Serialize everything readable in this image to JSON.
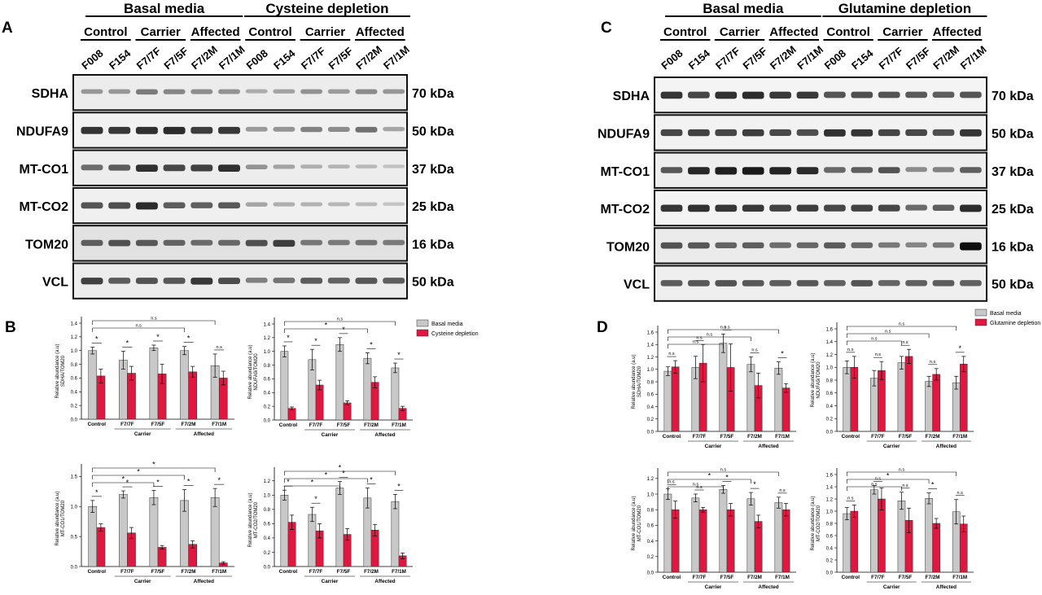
{
  "panels": {
    "A": {
      "letter": "A",
      "header_groups": [
        "Basal media",
        "Cysteine depletion"
      ],
      "subgroups": [
        "Control",
        "Carrier",
        "Affected",
        "Control",
        "Carrier",
        "Affected"
      ],
      "lanes": [
        "F008",
        "F154",
        "F7/7F",
        "F7/5F",
        "F7/2M",
        "F7/1M",
        "F008",
        "F154",
        "F7/7F",
        "F7/5F",
        "F7/2M",
        "F7/1M"
      ],
      "blots": [
        {
          "protein": "SDHA",
          "kda": "70 kDa",
          "bg": "#ececec",
          "band": [
            0.28,
            0.28,
            0.42,
            0.36,
            0.33,
            0.31,
            0.18,
            0.22,
            0.3,
            0.26,
            0.34,
            0.28
          ]
        },
        {
          "protein": "NDUFA9",
          "kda": "50 kDa",
          "bg": "#f1f1f1",
          "band": [
            0.78,
            0.76,
            0.8,
            0.82,
            0.74,
            0.76,
            0.28,
            0.3,
            0.4,
            0.35,
            0.48,
            0.22
          ]
        },
        {
          "protein": "MT-CO1",
          "kda": "37 kDa",
          "bg": "#ededed",
          "band": [
            0.5,
            0.58,
            0.8,
            0.68,
            0.72,
            0.8,
            0.3,
            0.22,
            0.16,
            0.14,
            0.12,
            0.07
          ]
        },
        {
          "protein": "MT-CO2",
          "kda": "25 kDa",
          "bg": "#f0f0f0",
          "band": [
            0.62,
            0.66,
            0.82,
            0.58,
            0.56,
            0.6,
            0.22,
            0.18,
            0.16,
            0.14,
            0.12,
            0.07
          ]
        },
        {
          "protein": "TOM20",
          "kda": "16 kDa",
          "bg": "#e2e2e2",
          "band": [
            0.55,
            0.62,
            0.58,
            0.52,
            0.48,
            0.5,
            0.62,
            0.72,
            0.42,
            0.4,
            0.44,
            0.4
          ]
        },
        {
          "protein": "VCL",
          "kda": "50 kDa",
          "bg": "#ececec",
          "band": [
            0.72,
            0.58,
            0.62,
            0.6,
            0.76,
            0.66,
            0.4,
            0.46,
            0.58,
            0.54,
            0.6,
            0.56
          ]
        }
      ]
    },
    "C": {
      "letter": "C",
      "header_groups": [
        "Basal media",
        "Glutamine depletion"
      ],
      "subgroups": [
        "Control",
        "Carrier",
        "Affected",
        "Control",
        "Carrier",
        "Affected"
      ],
      "lanes": [
        "F008",
        "F154",
        "F7/7F",
        "F7/5F",
        "F7/2M",
        "F7/1M",
        "F008",
        "F154",
        "F7/7F",
        "F7/5F",
        "F7/2M",
        "F7/1M"
      ],
      "blots": [
        {
          "protein": "SDHA",
          "kda": "70 kDa",
          "bg": "#f4f4f4",
          "band": [
            0.78,
            0.7,
            0.8,
            0.82,
            0.76,
            0.76,
            0.62,
            0.66,
            0.64,
            0.6,
            0.58,
            0.62
          ]
        },
        {
          "protein": "NDUFA9",
          "kda": "50 kDa",
          "bg": "#f2f2f2",
          "band": [
            0.7,
            0.72,
            0.7,
            0.74,
            0.68,
            0.66,
            0.8,
            0.78,
            0.7,
            0.68,
            0.66,
            0.78
          ]
        },
        {
          "protein": "MT-CO1",
          "kda": "37 kDa",
          "bg": "#eeeeee",
          "band": [
            0.6,
            0.84,
            0.88,
            0.9,
            0.86,
            0.82,
            0.52,
            0.56,
            0.62,
            0.34,
            0.4,
            0.56
          ]
        },
        {
          "protein": "MT-CO2",
          "kda": "25 kDa",
          "bg": "#f3f3f3",
          "band": [
            0.78,
            0.8,
            0.78,
            0.76,
            0.72,
            0.74,
            0.7,
            0.72,
            0.7,
            0.52,
            0.58,
            0.82
          ]
        },
        {
          "protein": "TOM20",
          "kda": "16 kDa",
          "bg": "#ebebeb",
          "band": [
            0.62,
            0.6,
            0.54,
            0.56,
            0.5,
            0.52,
            0.58,
            0.52,
            0.44,
            0.36,
            0.44,
            0.96
          ]
        },
        {
          "protein": "VCL",
          "kda": "50 kDa",
          "bg": "#efefef",
          "band": [
            0.58,
            0.6,
            0.62,
            0.6,
            0.58,
            0.6,
            0.56,
            0.62,
            0.54,
            0.56,
            0.58,
            0.56
          ]
        }
      ]
    },
    "B": {
      "letter": "B"
    },
    "D": {
      "letter": "D"
    }
  },
  "legends": {
    "B": {
      "series": [
        "Basal media",
        "Cysteine depletion"
      ]
    },
    "D": {
      "series": [
        "Basal media",
        "Glutamine depletion"
      ]
    }
  },
  "colors": {
    "basal": "#c8c8c8",
    "depleted": "#e0173f",
    "axis": "#000000"
  },
  "chart_data": [
    {
      "panel": "B",
      "type": "bar",
      "ylabel": [
        "Relative abundance (a.u)",
        "SDHA/TOM20"
      ],
      "categories": [
        "Control",
        "F7/7F",
        "F7/5F",
        "F7/2M",
        "F7/1M"
      ],
      "group_labels": [
        "Carrier",
        "Affected"
      ],
      "yticks": [
        "0.0",
        "0.2",
        "0.4",
        "0.6",
        "0.8",
        "1.0",
        "1.2",
        "1.4"
      ],
      "ylim": [
        0,
        1.4
      ],
      "series": [
        {
          "name": "Basal media",
          "values": [
            1.0,
            0.86,
            1.04,
            1.0,
            0.78
          ],
          "err": [
            0.05,
            0.13,
            0.04,
            0.06,
            0.17
          ]
        },
        {
          "name": "Cysteine depletion",
          "values": [
            0.63,
            0.67,
            0.66,
            0.69,
            0.6
          ],
          "err": [
            0.1,
            0.1,
            0.14,
            0.08,
            0.1
          ]
        }
      ],
      "pair_sig": [
        "*",
        "*",
        "*",
        "*",
        "n.s"
      ],
      "brackets": [
        {
          "to": 3,
          "label": "n.s"
        },
        {
          "to": 4,
          "label": "n.s"
        }
      ]
    },
    {
      "panel": "B",
      "type": "bar",
      "ylabel": [
        "Relative abundance (a.u)",
        "NDUFA9/TOM20"
      ],
      "categories": [
        "Control",
        "F7/7F",
        "F7/5F",
        "F7/2M",
        "F7/1M"
      ],
      "group_labels": [
        "Carrier",
        "Affected"
      ],
      "yticks": [
        "0.0",
        "0.2",
        "0.4",
        "0.6",
        "0.8",
        "1.0",
        "1.2",
        "1.4"
      ],
      "ylim": [
        0,
        1.4
      ],
      "series": [
        {
          "name": "Basal media",
          "values": [
            1.0,
            0.88,
            1.1,
            0.9,
            0.76
          ],
          "err": [
            0.08,
            0.15,
            0.1,
            0.08,
            0.07
          ]
        },
        {
          "name": "Cysteine depletion",
          "values": [
            0.17,
            0.51,
            0.25,
            0.55,
            0.17
          ],
          "err": [
            0.02,
            0.07,
            0.03,
            0.08,
            0.03
          ]
        }
      ],
      "pair_sig": [
        "*",
        "*",
        "*",
        "*",
        "*"
      ],
      "brackets": [
        {
          "to": 3,
          "label": "*"
        },
        {
          "to": 4,
          "label": "n.s"
        }
      ]
    },
    {
      "panel": "B",
      "type": "bar",
      "ylabel": [
        "Relative abundance (a.u)",
        "MT-CO1/TOM20"
      ],
      "categories": [
        "Control",
        "F7/7F",
        "F7/5F",
        "F7/2M",
        "F7/1M"
      ],
      "group_labels": [
        "Carrier",
        "Affected"
      ],
      "yticks": [
        "0.0",
        "0.5",
        "1.0",
        "1.5"
      ],
      "ylim": [
        0,
        1.6
      ],
      "series": [
        {
          "name": "Basal media",
          "values": [
            1.0,
            1.2,
            1.15,
            1.1,
            1.15
          ],
          "err": [
            0.1,
            0.06,
            0.12,
            0.18,
            0.15
          ]
        },
        {
          "name": "Cysteine depletion",
          "values": [
            0.65,
            0.56,
            0.32,
            0.37,
            0.06
          ],
          "err": [
            0.06,
            0.09,
            0.03,
            0.06,
            0.02
          ]
        }
      ],
      "pair_sig": [
        "*",
        "*",
        "*",
        "*",
        "*"
      ],
      "brackets": [
        {
          "to": 2,
          "label": "*"
        },
        {
          "to": 3,
          "label": "*"
        },
        {
          "to": 4,
          "label": "*"
        }
      ]
    },
    {
      "panel": "B",
      "type": "bar",
      "ylabel": [
        "Relative abundance (a.u)",
        "MT-CO2/TOM20"
      ],
      "categories": [
        "Control",
        "F7/7F",
        "F7/5F",
        "F7/2M",
        "F7/1M"
      ],
      "group_labels": [
        "Carrier",
        "Affected"
      ],
      "yticks": [
        "0.0",
        "0.2",
        "0.4",
        "0.6",
        "0.8",
        "1.0",
        "1.2"
      ],
      "ylim": [
        0,
        1.3
      ],
      "series": [
        {
          "name": "Basal media",
          "values": [
            1.0,
            0.73,
            1.1,
            0.96,
            0.91
          ],
          "err": [
            0.07,
            0.1,
            0.09,
            0.14,
            0.1
          ]
        },
        {
          "name": "Cysteine depletion",
          "values": [
            0.62,
            0.5,
            0.45,
            0.51,
            0.15
          ],
          "err": [
            0.1,
            0.1,
            0.08,
            0.08,
            0.04
          ]
        }
      ],
      "pair_sig": [
        "*",
        "*",
        "*",
        "*",
        "*"
      ],
      "brackets": [
        {
          "to": 2,
          "label": "*"
        },
        {
          "to": 3,
          "label": "*"
        },
        {
          "to": 4,
          "label": "*"
        }
      ]
    },
    {
      "panel": "D",
      "type": "bar",
      "ylabel": [
        "Relative abundance (a.u)",
        "SDHA/TOM20"
      ],
      "categories": [
        "Control",
        "F7/7F",
        "F7/5F",
        "F7/2M",
        "F7/1M"
      ],
      "group_labels": [
        "Carrier",
        "Affected"
      ],
      "yticks": [
        "0.0",
        "0.2",
        "0.4",
        "0.6",
        "0.8",
        "1.0",
        "1.2",
        "1.4",
        "1.6"
      ],
      "ylim": [
        0,
        1.6
      ],
      "series": [
        {
          "name": "Basal media",
          "values": [
            0.97,
            1.03,
            1.42,
            1.08,
            1.02
          ],
          "err": [
            0.07,
            0.18,
            0.15,
            0.12,
            0.1
          ]
        },
        {
          "name": "Glutamine depletion",
          "values": [
            1.04,
            1.1,
            1.03,
            0.74,
            0.7
          ],
          "err": [
            0.1,
            0.3,
            0.38,
            0.2,
            0.07
          ]
        }
      ],
      "pair_sig": [
        "n.s",
        "n.s",
        "n.s",
        "n.s",
        "*"
      ],
      "brackets": [
        {
          "to": 2,
          "label": "n.s"
        },
        {
          "to": 3,
          "label": "n.s"
        },
        {
          "to": 4,
          "label": "n.s"
        }
      ]
    },
    {
      "panel": "D",
      "type": "bar",
      "ylabel": [
        "Relative abundance (a.u)",
        "NDUFA9/TOM20"
      ],
      "categories": [
        "Control",
        "F7/7F",
        "F7/5F",
        "F7/2M",
        "F7/1M"
      ],
      "group_labels": [
        "Carrier",
        "Affected"
      ],
      "yticks": [
        "0.0",
        "0.2",
        "0.4",
        "0.6",
        "0.8",
        "1.0",
        "1.2",
        "1.4",
        "1.6"
      ],
      "ylim": [
        0,
        1.6
      ],
      "series": [
        {
          "name": "Basal media",
          "values": [
            1.0,
            0.83,
            1.07,
            0.78,
            0.76
          ],
          "err": [
            0.1,
            0.12,
            0.1,
            0.08,
            0.1
          ]
        },
        {
          "name": "Glutamine depletion",
          "values": [
            1.0,
            0.95,
            1.17,
            0.89,
            1.05
          ],
          "err": [
            0.17,
            0.14,
            0.11,
            0.09,
            0.12
          ]
        }
      ],
      "pair_sig": [
        "n.s",
        "n.s",
        "n.s",
        "n.s",
        "*"
      ],
      "brackets": [
        {
          "to": 2,
          "label": "n.s"
        },
        {
          "to": 3,
          "label": "n.s"
        },
        {
          "to": 4,
          "label": "n.s"
        }
      ]
    },
    {
      "panel": "D",
      "type": "bar",
      "ylabel": [
        "Relative abundance (a.u)",
        "MT-CO1/TOM20"
      ],
      "categories": [
        "Control",
        "F7/7F",
        "F7/5F",
        "F7/2M",
        "F7/1M"
      ],
      "group_labels": [
        "Carrier",
        "Affected"
      ],
      "yticks": [
        "0.0",
        "0.2",
        "0.4",
        "0.6",
        "0.8",
        "1.0",
        "1.2"
      ],
      "ylim": [
        0,
        1.25
      ],
      "series": [
        {
          "name": "Basal media",
          "values": [
            1.0,
            0.95,
            1.06,
            0.94,
            0.89
          ],
          "err": [
            0.07,
            0.05,
            0.05,
            0.08,
            0.07
          ]
        },
        {
          "name": "Glutamine depletion",
          "values": [
            0.8,
            0.8,
            0.8,
            0.65,
            0.8
          ],
          "err": [
            0.11,
            0.03,
            0.08,
            0.08,
            0.08
          ]
        }
      ],
      "pair_sig": [
        "n.s",
        "n.s",
        "*",
        "*",
        "n.s"
      ],
      "brackets": [
        {
          "to": 2,
          "label": "n.s"
        },
        {
          "to": 3,
          "label": "*"
        },
        {
          "to": 4,
          "label": "n.s"
        }
      ]
    },
    {
      "panel": "D",
      "type": "bar",
      "ylabel": [
        "Relative abundance (a.u)",
        "MT-CO2/TOM20"
      ],
      "categories": [
        "Control",
        "F7/7F",
        "F7/5F",
        "F7/2M",
        "F7/1M"
      ],
      "group_labels": [
        "Carrier",
        "Affected"
      ],
      "yticks": [
        "0.0",
        "0.2",
        "0.4",
        "0.6",
        "0.8",
        "1.0",
        "1.2",
        "1.4",
        "1.6"
      ],
      "ylim": [
        0,
        1.6
      ],
      "series": [
        {
          "name": "Basal media",
          "values": [
            0.96,
            1.35,
            1.17,
            1.21,
            0.99
          ],
          "err": [
            0.1,
            0.07,
            0.14,
            0.09,
            0.2
          ]
        },
        {
          "name": "Glutamine depletion",
          "values": [
            1.0,
            1.2,
            0.85,
            0.8,
            0.79
          ],
          "err": [
            0.1,
            0.18,
            0.2,
            0.08,
            0.13
          ]
        }
      ],
      "pair_sig": [
        "n.s",
        "n.s",
        "n.s",
        "*",
        "n.s"
      ],
      "brackets": [
        {
          "to": 2,
          "label": "n.s"
        },
        {
          "to": 3,
          "label": "*"
        },
        {
          "to": 4,
          "label": "n.s"
        }
      ]
    }
  ]
}
